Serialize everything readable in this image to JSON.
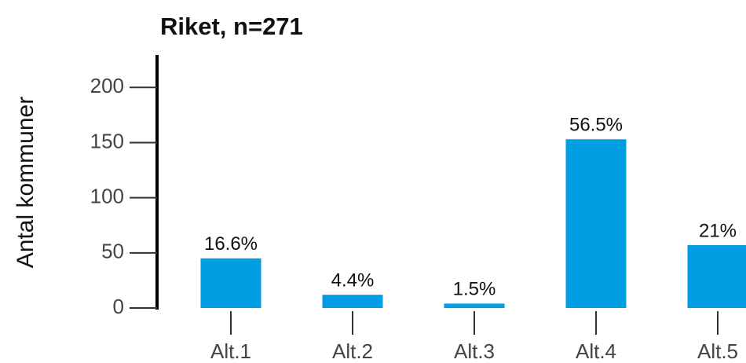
{
  "chart_data": {
    "type": "bar",
    "title": "Riket, n=271",
    "y_label": "Antal kommuner",
    "categories": [
      "Alt.1",
      "Alt.2",
      "Alt.3",
      "Alt.4",
      "Alt.5"
    ],
    "values": [
      45,
      12,
      4,
      153,
      57
    ],
    "value_labels": [
      "16.6%",
      "4.4%",
      "1.5%",
      "56.5%",
      "21%"
    ],
    "color": "#009fe3",
    "ylim": [
      0,
      228
    ],
    "yticks": [
      0,
      50,
      100,
      150,
      200
    ],
    "grid": false
  }
}
